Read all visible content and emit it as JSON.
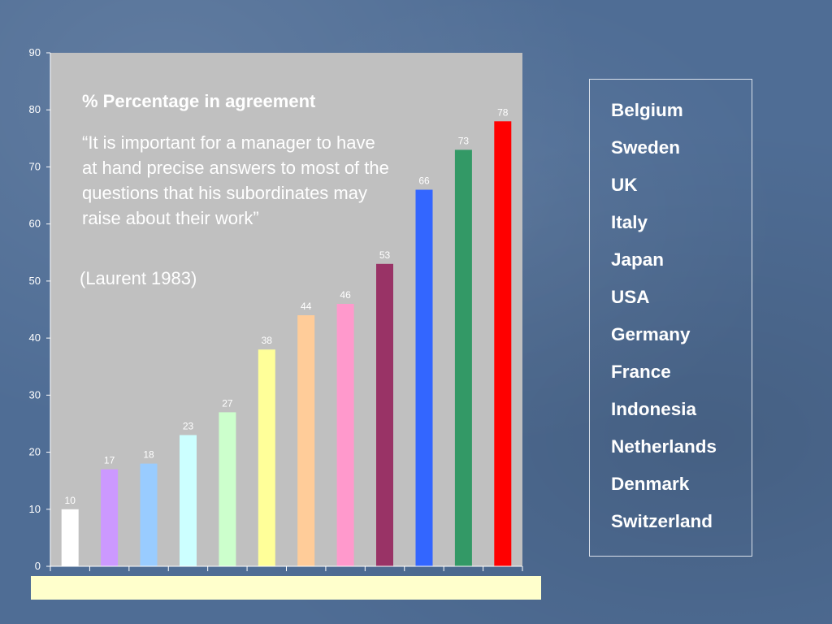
{
  "chart_data": {
    "type": "bar",
    "title": "% Percentage in agreement",
    "subtitle": "“It is important for a manager to have at hand precise answers to most of the questions that his subordinates may raise about their work”",
    "annotation": "(Laurent 1983)",
    "categories": [
      "Belgium",
      "Sweden",
      "UK",
      "Italy",
      "Japan",
      "USA",
      "Germany",
      "France",
      "Indonesia",
      "Netherlands",
      "Denmark",
      "Switzerland"
    ],
    "values": [
      10,
      17,
      18,
      23,
      27,
      38,
      44,
      46,
      53,
      66,
      73,
      78
    ],
    "colors": [
      "#ffffff",
      "#cc99ff",
      "#99ccff",
      "#ccffff",
      "#ccffcc",
      "#ffff99",
      "#ffcc99",
      "#ff99cc",
      "#993366",
      "#3366ff",
      "#339966",
      "#ff0000"
    ],
    "yticks": [
      0,
      10,
      20,
      30,
      40,
      50,
      60,
      70,
      80,
      90
    ],
    "ylim": [
      0,
      90
    ],
    "xlabel": "",
    "ylabel": "",
    "grid": false,
    "legend": "right",
    "plot_background": "#c0c0c0",
    "category_strip_color": "#ffffcc"
  }
}
